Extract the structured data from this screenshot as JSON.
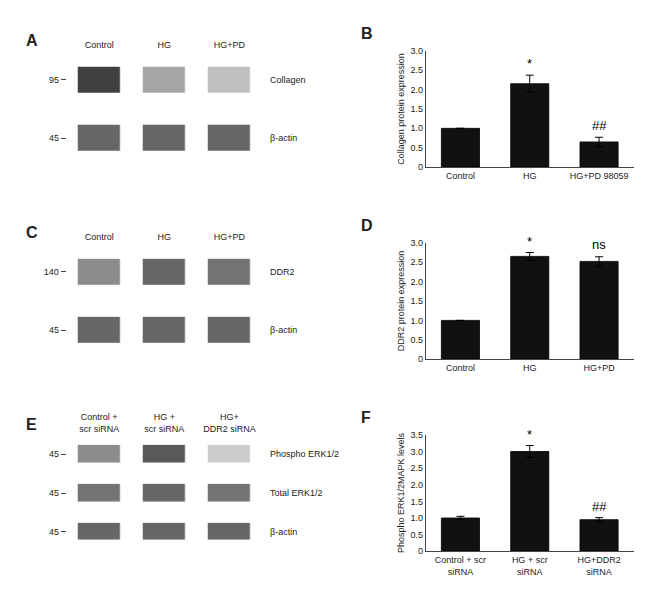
{
  "chart_data": [
    {
      "type": "heatmap",
      "title": "A",
      "categories": [
        "Control",
        "HG",
        "HG+PD"
      ],
      "zlim": [
        0,
        1
      ],
      "series": [
        {
          "name": "Collagen",
          "kda": 95,
          "values": [
            0.75,
            0.35,
            0.25
          ]
        },
        {
          "name": "β-actin",
          "kda": 45,
          "values": [
            0.6,
            0.6,
            0.6
          ]
        }
      ]
    },
    {
      "type": "bar",
      "title": "B",
      "categories": [
        "Control",
        "HG",
        "HG+PD 98059"
      ],
      "values": [
        1.0,
        2.15,
        0.65
      ],
      "errors": [
        0.0,
        0.22,
        0.12
      ],
      "ylabel": "Collagen protein expression",
      "ylim": [
        0,
        3
      ],
      "yticks": [
        0,
        0.5,
        {
          "value": 1,
          "label": "1.0"
        },
        1.5,
        {
          "value": 2,
          "label": "2.0"
        },
        2.5,
        {
          "value": 3,
          "label": "3.0"
        }
      ],
      "annotations": [
        {
          "text": "*",
          "x": "HG",
          "y": 2.42
        },
        {
          "text": "##",
          "x": "HG+PD 98059",
          "y": 0.82
        }
      ],
      "color": "#111111",
      "grid": false
    },
    {
      "type": "heatmap",
      "title": "C",
      "categories": [
        "Control",
        "HG",
        "HG+PD"
      ],
      "zlim": [
        0,
        1
      ],
      "series": [
        {
          "name": "DDR2",
          "kda": 140,
          "values": [
            0.45,
            0.6,
            0.55
          ]
        },
        {
          "name": "β-actin",
          "kda": 45,
          "values": [
            0.6,
            0.6,
            0.6
          ]
        }
      ]
    },
    {
      "type": "bar",
      "title": "D",
      "categories": [
        "Control",
        "HG",
        "HG+PD"
      ],
      "values": [
        1.0,
        2.65,
        2.52
      ],
      "errors": [
        0.0,
        0.1,
        0.12
      ],
      "ylabel": "DDR2 protein expression",
      "ylim": [
        0,
        3
      ],
      "yticks": [
        0,
        0.5,
        {
          "value": 1,
          "label": "1.0"
        },
        1.5,
        {
          "value": 2,
          "label": "2.0"
        },
        2.5,
        {
          "value": 3,
          "label": "3.0"
        }
      ],
      "annotations": [
        {
          "text": "*",
          "x": "HG",
          "y": 2.78
        },
        {
          "text": "ns",
          "x": "HG+PD",
          "y": 2.72
        }
      ],
      "color": "#111111",
      "grid": false
    },
    {
      "type": "heatmap",
      "title": "E",
      "categories": [
        "Control +\nscr siRNA",
        "HG +\nscr siRNA",
        "HG+\nDDR2 siRNA"
      ],
      "zlim": [
        0,
        1
      ],
      "series": [
        {
          "name": "Phospho ERK1/2",
          "kda": 45,
          "values": [
            0.45,
            0.65,
            0.2
          ]
        },
        {
          "name": "Total ERK1/2",
          "kda": 45,
          "values": [
            0.55,
            0.6,
            0.55
          ]
        },
        {
          "name": "β-actin",
          "kda": 45,
          "values": [
            0.6,
            0.6,
            0.6
          ]
        }
      ]
    },
    {
      "type": "bar",
      "title": "F",
      "categories": [
        "Control + scr\nsiRNA",
        "HG + scr\nsiRNA",
        "HG+DDR2\nsiRNA"
      ],
      "values": [
        1.0,
        3.0,
        0.95
      ],
      "errors": [
        0.05,
        0.18,
        0.06
      ],
      "ylabel": "Phospho ERK1/2MAPK levels",
      "ylim": [
        0,
        3.5
      ],
      "yticks": [
        0,
        0.5,
        {
          "value": 1,
          "label": "1.0"
        },
        1.5,
        {
          "value": 2,
          "label": "2.0"
        },
        2.5,
        {
          "value": 3,
          "label": "3.0"
        },
        3.5
      ],
      "annotations": [
        {
          "text": "*",
          "x": "HG + scr\nsiRNA",
          "y": 3.22
        },
        {
          "text": "##",
          "x": "HG+DDR2\nsiRNA",
          "y": 1.07
        }
      ],
      "color": "#111111",
      "grid": false
    }
  ]
}
